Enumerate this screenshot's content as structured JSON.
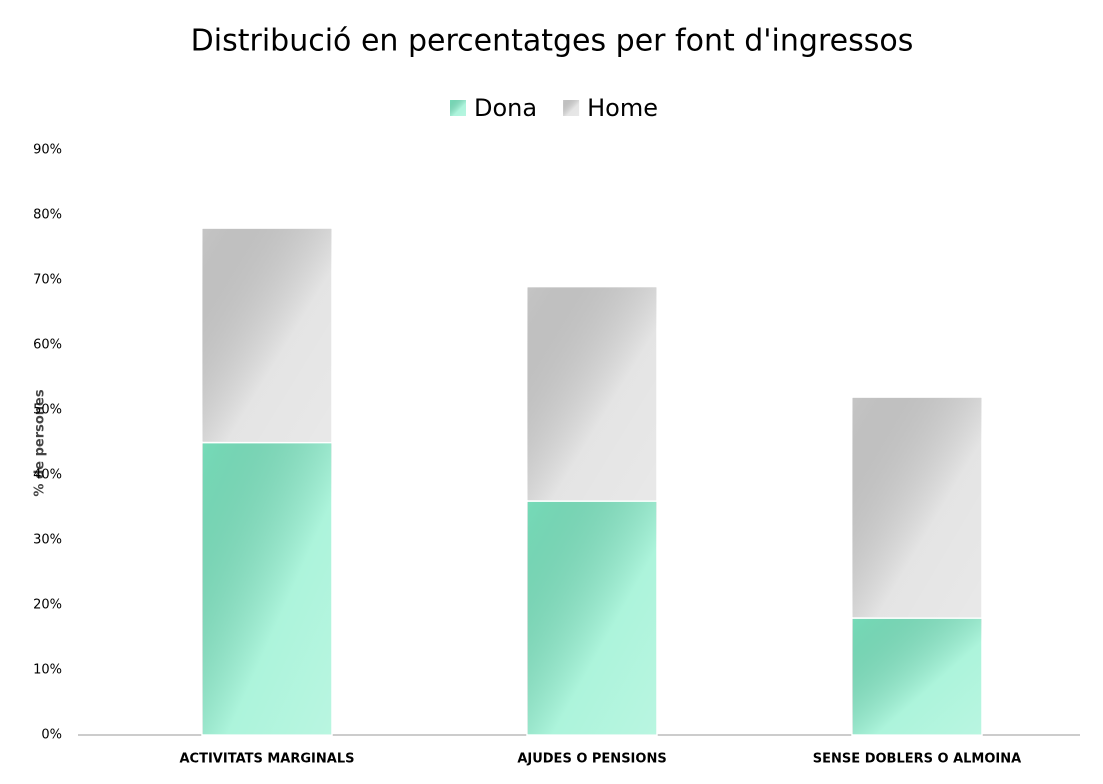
{
  "chart_data": {
    "type": "stacked_bar",
    "title": "Distribució en percentatges per font d'ingressos",
    "y_label": "% de persones",
    "categories": [
      "ACTIVITATS MARGINALS",
      "AJUDES O PENSIONS",
      "SENSE DOBLERS O ALMOINA"
    ],
    "series": [
      {
        "name": "Dona",
        "color": "#80eec8",
        "values": [
          45,
          36,
          18
        ]
      },
      {
        "name": "Home",
        "color": "#d6d6d6",
        "values": [
          33,
          33,
          34
        ]
      }
    ],
    "ylim": [
      0,
      90
    ],
    "yticks": [
      {
        "value": 0,
        "label": "0%"
      },
      {
        "value": 10,
        "label": "10%"
      },
      {
        "value": 20,
        "label": "20%"
      },
      {
        "value": 30,
        "label": "30%"
      },
      {
        "value": 40,
        "label": "40%"
      },
      {
        "value": 50,
        "label": "50%"
      },
      {
        "value": 60,
        "label": "60%"
      },
      {
        "value": 70,
        "label": "70%"
      },
      {
        "value": 80,
        "label": "80%"
      },
      {
        "value": 90,
        "label": "90%"
      }
    ],
    "grid": false,
    "legend": "top"
  }
}
